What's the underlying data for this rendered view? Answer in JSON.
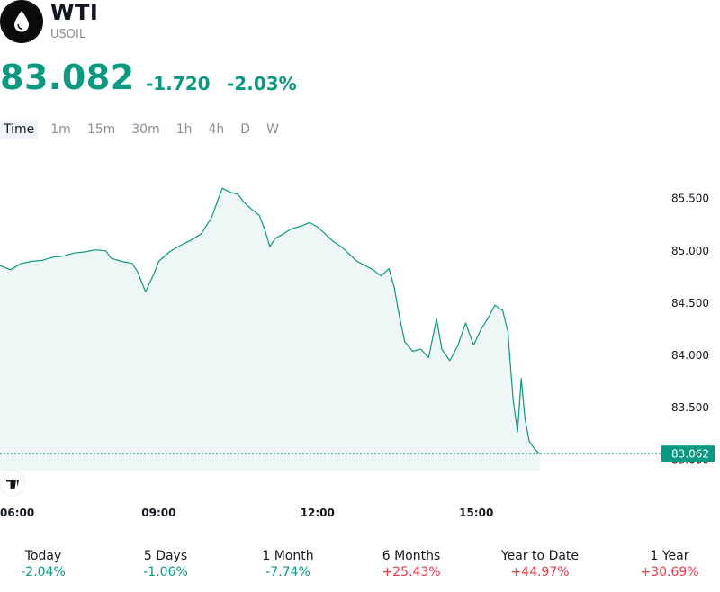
{
  "header": {
    "symbol": "WTI",
    "ticker": "USOIL",
    "price": "83.082",
    "change": "-1.720",
    "change_percent": "-2.03%",
    "icon": "oil-drop-icon"
  },
  "timeframes": [
    {
      "label": "Time",
      "active": true
    },
    {
      "label": "1m",
      "active": false
    },
    {
      "label": "15m",
      "active": false
    },
    {
      "label": "30m",
      "active": false
    },
    {
      "label": "1h",
      "active": false
    },
    {
      "label": "4h",
      "active": false
    },
    {
      "label": "D",
      "active": false
    },
    {
      "label": "W",
      "active": false
    }
  ],
  "colors": {
    "line": "#089981",
    "fill": "#eef7f5",
    "negative": "#089981",
    "positive": "#f23645"
  },
  "chart_data": {
    "type": "area",
    "x_ticks": [
      {
        "label": "06:00",
        "hour": 6
      },
      {
        "label": "09:00",
        "hour": 9
      },
      {
        "label": "12:00",
        "hour": 12
      },
      {
        "label": "15:00",
        "hour": 15
      }
    ],
    "y_ticks": [
      "83.000",
      "83.500",
      "84.000",
      "84.500",
      "85.000",
      "85.500"
    ],
    "ylim": [
      82.9,
      85.85
    ],
    "xlim": [
      6.0,
      18.5
    ],
    "last_price_label": "83.062",
    "last_price": 83.062,
    "series": [
      {
        "points": [
          [
            6.0,
            84.86
          ],
          [
            6.2,
            84.82
          ],
          [
            6.4,
            84.88
          ],
          [
            6.6,
            84.9
          ],
          [
            6.8,
            84.91
          ],
          [
            7.0,
            84.94
          ],
          [
            7.2,
            84.95
          ],
          [
            7.4,
            84.98
          ],
          [
            7.6,
            84.99
          ],
          [
            7.8,
            85.01
          ],
          [
            8.0,
            85.0
          ],
          [
            8.1,
            84.93
          ],
          [
            8.3,
            84.9
          ],
          [
            8.5,
            84.88
          ],
          [
            8.6,
            84.8
          ],
          [
            8.75,
            84.61
          ],
          [
            8.9,
            84.77
          ],
          [
            9.0,
            84.9
          ],
          [
            9.2,
            84.99
          ],
          [
            9.4,
            85.05
          ],
          [
            9.6,
            85.1
          ],
          [
            9.8,
            85.16
          ],
          [
            10.0,
            85.32
          ],
          [
            10.1,
            85.46
          ],
          [
            10.2,
            85.6
          ],
          [
            10.35,
            85.56
          ],
          [
            10.5,
            85.54
          ],
          [
            10.6,
            85.47
          ],
          [
            10.75,
            85.4
          ],
          [
            10.9,
            85.34
          ],
          [
            11.0,
            85.21
          ],
          [
            11.1,
            85.04
          ],
          [
            11.2,
            85.12
          ],
          [
            11.35,
            85.16
          ],
          [
            11.5,
            85.21
          ],
          [
            11.7,
            85.24
          ],
          [
            11.85,
            85.27
          ],
          [
            12.0,
            85.23
          ],
          [
            12.15,
            85.16
          ],
          [
            12.3,
            85.09
          ],
          [
            12.45,
            85.04
          ],
          [
            12.6,
            84.97
          ],
          [
            12.75,
            84.9
          ],
          [
            12.9,
            84.86
          ],
          [
            13.05,
            84.82
          ],
          [
            13.2,
            84.76
          ],
          [
            13.35,
            84.83
          ],
          [
            13.45,
            84.65
          ],
          [
            13.55,
            84.37
          ],
          [
            13.65,
            84.13
          ],
          [
            13.8,
            84.04
          ],
          [
            13.95,
            84.06
          ],
          [
            14.1,
            83.98
          ],
          [
            14.25,
            84.35
          ],
          [
            14.35,
            84.06
          ],
          [
            14.5,
            83.95
          ],
          [
            14.65,
            84.09
          ],
          [
            14.8,
            84.31
          ],
          [
            14.95,
            84.1
          ],
          [
            15.1,
            84.26
          ],
          [
            15.25,
            84.38
          ],
          [
            15.35,
            84.48
          ],
          [
            15.5,
            84.43
          ],
          [
            15.6,
            84.22
          ],
          [
            15.65,
            83.88
          ],
          [
            15.7,
            83.56
          ],
          [
            15.78,
            83.27
          ],
          [
            15.85,
            83.78
          ],
          [
            15.92,
            83.4
          ],
          [
            16.0,
            83.18
          ],
          [
            16.1,
            83.11
          ],
          [
            16.2,
            83.06
          ]
        ]
      }
    ]
  },
  "performance": [
    {
      "label": "Today",
      "value": "-2.04%",
      "trend": "neg"
    },
    {
      "label": "5 Days",
      "value": "-1.06%",
      "trend": "neg"
    },
    {
      "label": "1 Month",
      "value": "-7.74%",
      "trend": "neg"
    },
    {
      "label": "6 Months",
      "value": "+25.43%",
      "trend": "pos"
    },
    {
      "label": "Year to Date",
      "value": "+44.97%",
      "trend": "pos"
    },
    {
      "label": "1 Year",
      "value": "+30.69%",
      "trend": "pos"
    }
  ]
}
